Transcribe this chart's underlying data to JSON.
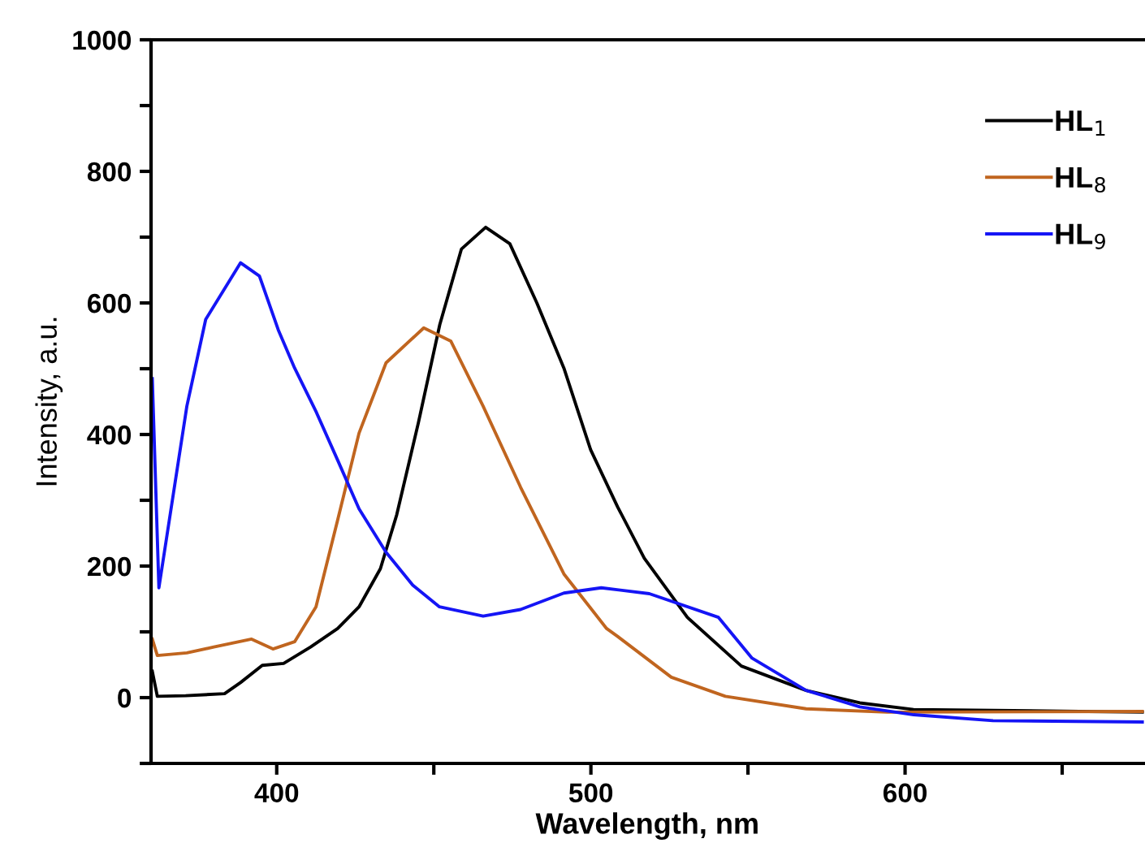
{
  "chart_data": {
    "type": "line",
    "xlabel": "Wavelength, nm",
    "ylabel": "Intensity, a.u.",
    "xlim": [
      360,
      676
    ],
    "xticks": [
      400,
      {
        "value": 450,
        "label": null
      },
      500,
      {
        "value": 550,
        "label": null
      },
      600,
      {
        "value": 650,
        "label": null
      }
    ],
    "ylim": [
      -100,
      1000
    ],
    "yticks": [
      {
        "value": -100,
        "label": null
      },
      0,
      {
        "value": 100,
        "label": null
      },
      200,
      {
        "value": 300,
        "label": null
      },
      400,
      {
        "value": 500,
        "label": null
      },
      600,
      {
        "value": 700,
        "label": null
      },
      800,
      {
        "value": 900,
        "label": null
      },
      1000
    ],
    "grid": false,
    "legend": "top right",
    "marker": "none",
    "line_style": "solid",
    "series": [
      {
        "name": "HL$_{1}$",
        "color": "#000000",
        "x": [
          360.4,
          362,
          371,
          383.4,
          388.5,
          395.4,
          402.2,
          410.8,
          419.4,
          426.2,
          433,
          438.2,
          445.1,
          451.9,
          458.8,
          466.5,
          474.2,
          482.8,
          491.4,
          499.9,
          508.5,
          517,
          530.7,
          547.9,
          568.5,
          585.6,
          602.7,
          675.6
        ],
        "values": [
          40,
          2,
          3,
          6,
          23,
          49,
          52,
          77,
          105,
          138,
          196,
          278,
          418,
          567,
          682,
          715,
          690,
          600,
          501,
          377,
          290,
          212,
          122,
          48,
          11,
          -8,
          -18,
          -22
        ]
      },
      {
        "name": "HL$_{8}$",
        "color": "#c0651f",
        "x": [
          360.4,
          362,
          371.4,
          380,
          392,
          398.8,
          405.7,
          412.5,
          419.4,
          426.2,
          434.8,
          446.8,
          455.4,
          465.7,
          477.6,
          491.4,
          505,
          508.5,
          525.6,
          542.8,
          568.5,
          594.2,
          675.6
        ],
        "values": [
          89,
          64,
          68,
          77,
          89,
          74,
          85,
          138,
          270,
          402,
          509,
          562,
          542,
          443,
          320,
          188,
          105,
          93,
          31,
          2,
          -17,
          -22,
          -21
        ]
      },
      {
        "name": "HL$_{9}$",
        "color": "#1515f5",
        "x": [
          360.4,
          362.5,
          371.4,
          377.4,
          388.5,
          394.5,
          400.5,
          405.7,
          412.5,
          419.4,
          426.2,
          434.8,
          443.3,
          451.8,
          465.7,
          477.6,
          491.4,
          503.3,
          518.6,
          540.6,
          551.3,
          568.5,
          585.6,
          602.7,
          628,
          675.6
        ],
        "values": [
          485,
          167,
          443,
          575,
          661,
          641,
          559,
          501,
          435,
          361,
          287,
          221,
          171,
          138,
          124,
          134,
          159,
          167,
          158,
          122,
          60,
          11,
          -14,
          -26,
          -35,
          -37
        ]
      }
    ]
  }
}
